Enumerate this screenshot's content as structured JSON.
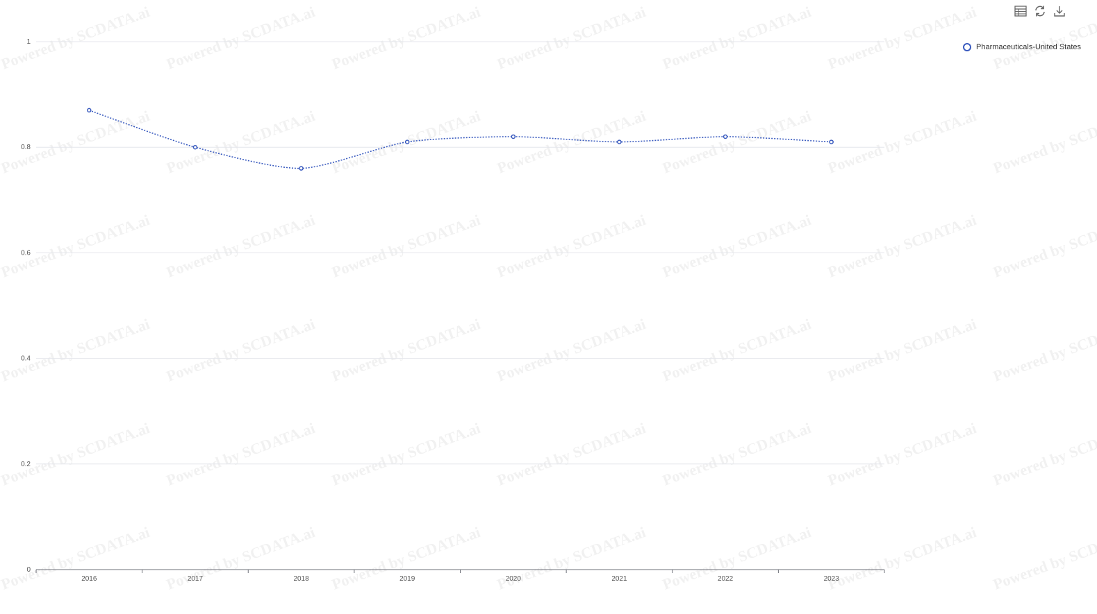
{
  "toolbar": {
    "icons": [
      "table-icon",
      "refresh-icon",
      "download-icon"
    ]
  },
  "watermark_text": "Powered by SCDATA.ai",
  "chart_data": {
    "type": "line",
    "title": "",
    "xlabel": "",
    "ylabel": "",
    "categories": [
      "2016",
      "2017",
      "2018",
      "2019",
      "2020",
      "2021",
      "2022",
      "2023"
    ],
    "y_ticks": [
      "0",
      "0.2",
      "0.4",
      "0.6",
      "0.8",
      "1"
    ],
    "ylim": [
      0,
      1
    ],
    "grid": true,
    "legend_position": "top-right",
    "line_style": "dotted",
    "series": [
      {
        "name": "Pharmaceuticals-United States",
        "color": "#3a5bbf",
        "values": [
          0.87,
          0.8,
          0.76,
          0.81,
          0.82,
          0.81,
          0.82,
          0.81
        ]
      }
    ]
  }
}
